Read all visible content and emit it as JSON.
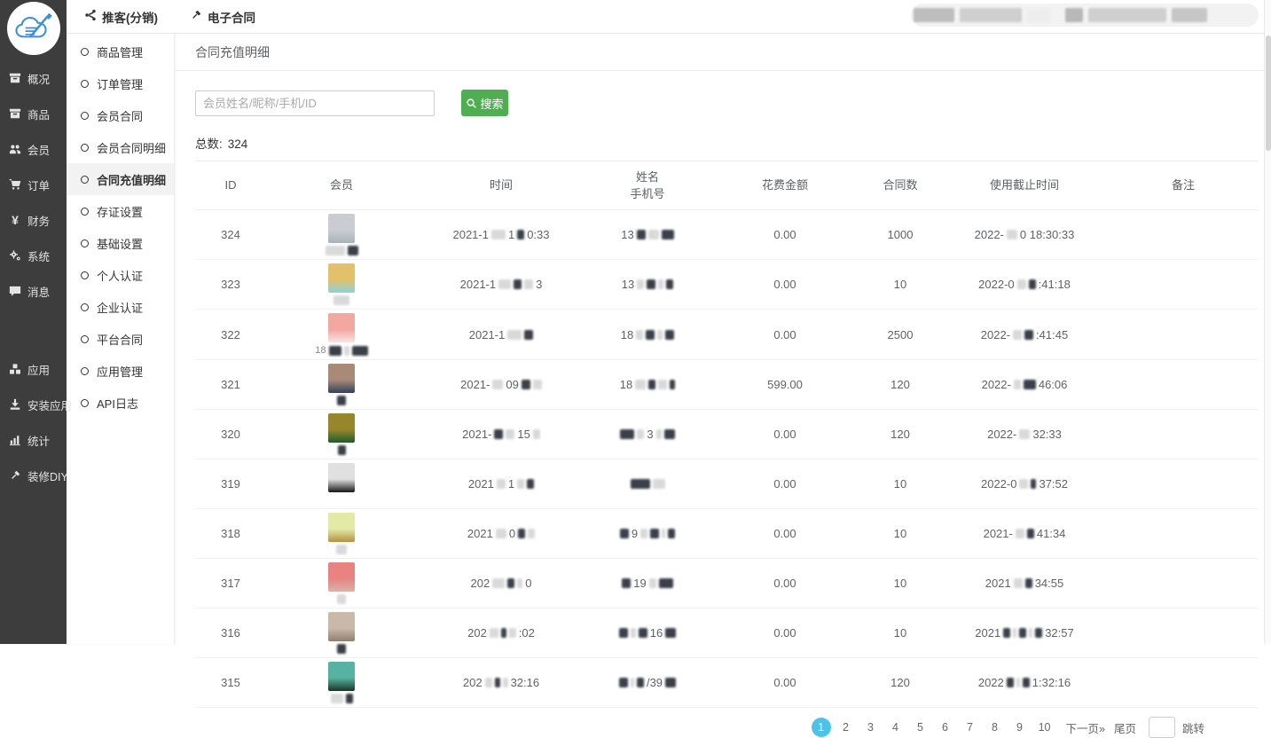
{
  "topbar": {
    "tabs": [
      {
        "icon": "share",
        "label": "推客(分销)"
      },
      {
        "icon": "gavel",
        "label": "电子合同"
      }
    ]
  },
  "sidebar": {
    "items": [
      {
        "icon": "archive",
        "label": "概况"
      },
      {
        "icon": "archive",
        "label": "商品"
      },
      {
        "icon": "users",
        "label": "会员"
      },
      {
        "icon": "cart",
        "label": "订单"
      },
      {
        "icon": "yen",
        "label": "财务"
      },
      {
        "icon": "cogs",
        "label": "系统"
      },
      {
        "icon": "comment",
        "label": "消息"
      },
      {
        "icon": "cubes",
        "label": "应用",
        "gap": true
      },
      {
        "icon": "install",
        "label": "安装应用"
      },
      {
        "icon": "chart",
        "label": "统计"
      },
      {
        "icon": "hammer",
        "label": "装修DIY"
      }
    ]
  },
  "submenu": {
    "items": [
      {
        "label": "商品管理"
      },
      {
        "label": "订单管理"
      },
      {
        "label": "会员合同"
      },
      {
        "label": "会员合同明细"
      },
      {
        "label": "合同充值明细",
        "active": true
      },
      {
        "label": "存证设置"
      },
      {
        "label": "基础设置"
      },
      {
        "label": "个人认证"
      },
      {
        "label": "企业认证"
      },
      {
        "label": "平台合同"
      },
      {
        "label": "应用管理"
      },
      {
        "label": "API日志"
      }
    ]
  },
  "page": {
    "title": "合同充值明细"
  },
  "search": {
    "placeholder": "会员姓名/昵称/手机/ID",
    "button_label": "搜索"
  },
  "summary": {
    "label": "总数:",
    "value": "324"
  },
  "table": {
    "columns": [
      "ID",
      "会员",
      "时间",
      "姓名\n手机号",
      "花费金额",
      "合同数",
      "使用截止时间",
      "备注"
    ],
    "rows": [
      {
        "id": "324",
        "avatar": [
          "#c9cdd2",
          "#a9b2ba"
        ],
        "member": [
          {
            "g": 22
          },
          {
            "k": 12
          }
        ],
        "time": [
          {
            "t": "2021-1"
          },
          {
            "g": 16
          },
          {
            "t": "1"
          },
          {
            "k": 8
          },
          {
            "t": "0:33"
          }
        ],
        "phone": [
          {
            "t": "13"
          },
          {
            "k": 10
          },
          {
            "g": 12
          },
          {
            "k": 14
          }
        ],
        "amount": "0.00",
        "contracts": "1000",
        "deadline": [
          {
            "t": "2022-"
          },
          {
            "g": 12
          },
          {
            "t": "0 18:30:33"
          }
        ],
        "remark": ""
      },
      {
        "id": "323",
        "avatar": [
          "#e3c06a",
          "#8bd2de"
        ],
        "member": [
          {
            "g": 18
          }
        ],
        "time": [
          {
            "t": "2021-1"
          },
          {
            "g": 14
          },
          {
            "k": 9
          },
          {
            "g": 10
          },
          {
            "t": "3"
          }
        ],
        "phone": [
          {
            "t": "13"
          },
          {
            "g": 8
          },
          {
            "k": 10
          },
          {
            "g": 6
          },
          {
            "k": 8
          }
        ],
        "amount": "0.00",
        "contracts": "10",
        "deadline": [
          {
            "t": "2022-0"
          },
          {
            "g": 10
          },
          {
            "k": 8
          },
          {
            "t": ":41:18"
          }
        ],
        "remark": ""
      },
      {
        "id": "322",
        "avatar": [
          "#f2a79f",
          "#f8e4e1"
        ],
        "member": [
          {
            "t": "18"
          },
          {
            "k": 14
          },
          {
            "g": 6
          },
          {
            "k": 18
          }
        ],
        "time": [
          {
            "t": "2021-1"
          },
          {
            "g": 16
          },
          {
            "k": 10
          }
        ],
        "phone": [
          {
            "t": "18"
          },
          {
            "g": 8
          },
          {
            "k": 10
          },
          {
            "g": 6
          },
          {
            "k": 10
          }
        ],
        "amount": "0.00",
        "contracts": "2500",
        "deadline": [
          {
            "t": "2022-"
          },
          {
            "g": 10
          },
          {
            "k": 10
          },
          {
            "t": ":41:45"
          }
        ],
        "remark": ""
      },
      {
        "id": "321",
        "avatar": [
          "#a98a76",
          "#32405c"
        ],
        "member": [
          {
            "k": 10
          }
        ],
        "time": [
          {
            "t": "2021-"
          },
          {
            "g": 12
          },
          {
            "t": "09"
          },
          {
            "k": 10
          },
          {
            "g": 10
          }
        ],
        "phone": [
          {
            "t": "18"
          },
          {
            "g": 12
          },
          {
            "k": 8
          },
          {
            "g": 10
          },
          {
            "k": 6
          }
        ],
        "amount": "599.00",
        "contracts": "120",
        "deadline": [
          {
            "t": "2022-"
          },
          {
            "g": 8
          },
          {
            "k": 14
          },
          {
            "t": "46:06"
          }
        ],
        "remark": ""
      },
      {
        "id": "320",
        "avatar": [
          "#97862c",
          "#1f5b2b"
        ],
        "member": [
          {
            "k": 9
          }
        ],
        "time": [
          {
            "t": "2021-"
          },
          {
            "k": 10
          },
          {
            "g": 10
          },
          {
            "t": "15"
          },
          {
            "g": 8
          }
        ],
        "phone": [
          {
            "k": 16
          },
          {
            "g": 8
          },
          {
            "t": "3"
          },
          {
            "g": 6
          },
          {
            "k": 12
          }
        ],
        "amount": "0.00",
        "contracts": "120",
        "deadline": [
          {
            "t": "2022-"
          },
          {
            "g": 12
          },
          {
            "t": "32:33"
          }
        ],
        "remark": ""
      },
      {
        "id": "319",
        "avatar": [
          "#e0e0e0",
          "#161616"
        ],
        "member": [],
        "time": [
          {
            "t": "2021"
          },
          {
            "g": 10
          },
          {
            "t": "1"
          },
          {
            "g": 8
          },
          {
            "k": 8
          }
        ],
        "phone": [
          {
            "k": 22
          },
          {
            "g": 14
          }
        ],
        "amount": "0.00",
        "contracts": "10",
        "deadline": [
          {
            "t": "2022-0"
          },
          {
            "g": 10
          },
          {
            "k": 6
          },
          {
            "t": "37:52"
          }
        ],
        "remark": ""
      },
      {
        "id": "318",
        "avatar": [
          "#e2eaa6",
          "#b69040"
        ],
        "member": [
          {
            "g": 12
          }
        ],
        "time": [
          {
            "t": "2021"
          },
          {
            "g": 12
          },
          {
            "t": "0"
          },
          {
            "k": 8
          },
          {
            "g": 8
          }
        ],
        "phone": [
          {
            "k": 10
          },
          {
            "t": "9"
          },
          {
            "g": 8
          },
          {
            "k": 10
          },
          {
            "g": 4
          },
          {
            "k": 8
          }
        ],
        "amount": "0.00",
        "contracts": "10",
        "deadline": [
          {
            "t": "2021-"
          },
          {
            "g": 10
          },
          {
            "k": 8
          },
          {
            "t": "41:34"
          }
        ],
        "remark": ""
      },
      {
        "id": "317",
        "avatar": [
          "#e88381",
          "#d9b3ab"
        ],
        "member": [
          {
            "g": 10
          }
        ],
        "time": [
          {
            "t": "202"
          },
          {
            "g": 14
          },
          {
            "k": 8
          },
          {
            "g": 6
          },
          {
            "t": "0"
          }
        ],
        "phone": [
          {
            "k": 10
          },
          {
            "t": "19"
          },
          {
            "g": 8
          },
          {
            "k": 16
          }
        ],
        "amount": "0.00",
        "contracts": "10",
        "deadline": [
          {
            "t": "2021"
          },
          {
            "g": 10
          },
          {
            "k": 8
          },
          {
            "t": "34:55"
          }
        ],
        "remark": ""
      },
      {
        "id": "316",
        "avatar": [
          "#c9b9a9",
          "#8f7f6d"
        ],
        "member": [
          {
            "k": 10
          }
        ],
        "time": [
          {
            "t": "202"
          },
          {
            "g": 10
          },
          {
            "k": 6
          },
          {
            "g": 8
          },
          {
            "t": ":02"
          }
        ],
        "phone": [
          {
            "k": 10
          },
          {
            "g": 6
          },
          {
            "k": 10
          },
          {
            "t": "16"
          },
          {
            "k": 12
          }
        ],
        "amount": "0.00",
        "contracts": "10",
        "deadline": [
          {
            "t": "2021"
          },
          {
            "k": 8
          },
          {
            "g": 4
          },
          {
            "k": 8
          },
          {
            "g": 4
          },
          {
            "k": 8
          },
          {
            "t": "32:57"
          }
        ],
        "remark": ""
      },
      {
        "id": "315",
        "avatar": [
          "#57b3a1",
          "#1c3326"
        ],
        "member": [
          {
            "g": 14
          },
          {
            "k": 8
          }
        ],
        "time": [
          {
            "t": "202"
          },
          {
            "g": 8
          },
          {
            "k": 6
          },
          {
            "g": 6
          },
          {
            "t": "32:16"
          }
        ],
        "phone": [
          {
            "k": 10
          },
          {
            "g": 4
          },
          {
            "k": 8
          },
          {
            "t": "/39"
          },
          {
            "k": 12
          }
        ],
        "amount": "0.00",
        "contracts": "120",
        "deadline": [
          {
            "t": "2022"
          },
          {
            "k": 8
          },
          {
            "g": 4
          },
          {
            "k": 8
          },
          {
            "t": "1:32:16"
          }
        ],
        "remark": ""
      }
    ]
  },
  "pagination": {
    "pages": [
      "1",
      "2",
      "3",
      "4",
      "5",
      "6",
      "7",
      "8",
      "9",
      "10"
    ],
    "active": "1",
    "next_label": "下一页»",
    "last_label": "尾页",
    "jump_label": "跳转"
  },
  "colors": {
    "sidebar_bg": "#3d3d3d",
    "accent_green": "#4fae52",
    "accent_blue": "#4ec3ea"
  }
}
